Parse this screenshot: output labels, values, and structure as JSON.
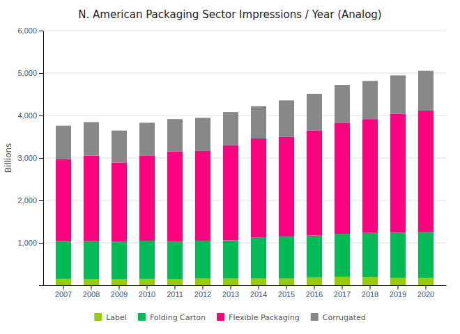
{
  "chart_data": {
    "type": "bar",
    "stacked": true,
    "title": "N. American Packaging Sector Impressions / Year (Analog)",
    "y_label": "Billions",
    "categories": [
      "2007",
      "2008",
      "2009",
      "2010",
      "2011",
      "2012",
      "2013",
      "2014",
      "2015",
      "2016",
      "2017",
      "2018",
      "2019",
      "2020"
    ],
    "series": [
      {
        "name": "Label",
        "color": "#99cc00",
        "values": [
          150,
          145,
          140,
          150,
          145,
          160,
          160,
          160,
          160,
          185,
          200,
          195,
          180,
          175
        ]
      },
      {
        "name": "Folding Carton",
        "color": "#00bb55",
        "values": [
          890,
          895,
          885,
          900,
          890,
          890,
          900,
          960,
          990,
          985,
          1010,
          1040,
          1060,
          1080
        ]
      },
      {
        "name": "Flexible Packaging",
        "color": "#ff0080",
        "values": [
          1930,
          2015,
          1870,
          2010,
          2120,
          2115,
          2240,
          2340,
          2345,
          2470,
          2620,
          2680,
          2800,
          2860
        ]
      },
      {
        "name": "Corrugated",
        "color": "#888888",
        "values": [
          790,
          790,
          750,
          770,
          760,
          780,
          780,
          760,
          860,
          870,
          890,
          900,
          905,
          940
        ]
      }
    ],
    "ylim": [
      0,
      6000
    ],
    "yticks": [
      {
        "value": 0,
        "label": null
      },
      {
        "value": 1000,
        "label": "1,000"
      },
      {
        "value": 2000,
        "label": "2,000"
      },
      {
        "value": 3000,
        "label": "3,000"
      },
      {
        "value": 4000,
        "label": "4,000"
      },
      {
        "value": 5000,
        "label": "5,000"
      },
      {
        "value": 6000,
        "label": "6,000"
      }
    ],
    "grid": true,
    "legend": "bottom"
  }
}
